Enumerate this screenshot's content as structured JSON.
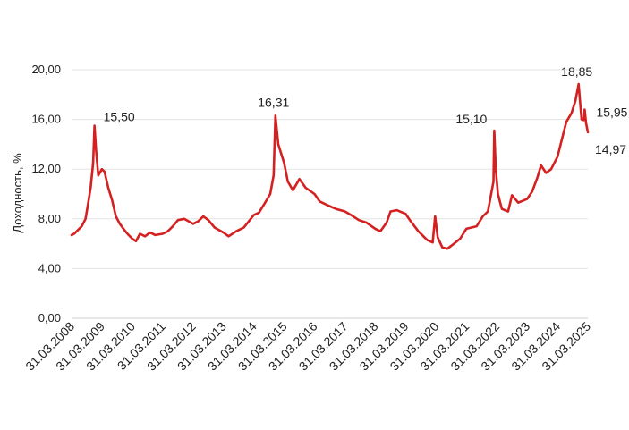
{
  "chart_data": {
    "type": "line",
    "title": "",
    "xlabel": "",
    "ylabel": "Доходность, %",
    "ylim": [
      0,
      20
    ],
    "grid": true,
    "legend": "none",
    "line_color": "#d42020",
    "y_ticks": [
      {
        "value": 0,
        "label": "0,00"
      },
      {
        "value": 4,
        "label": "4,00"
      },
      {
        "value": 8,
        "label": "8,00"
      },
      {
        "value": 12,
        "label": "12,00"
      },
      {
        "value": 16,
        "label": "16,00"
      },
      {
        "value": 20,
        "label": "20,00"
      }
    ],
    "x_ticks": [
      "31.03.2008",
      "31.03.2009",
      "31.03.2010",
      "31.03.2011",
      "31.03.2012",
      "31.03.2013",
      "31.03.2014",
      "31.03.2015",
      "31.03.2016",
      "31.03.2017",
      "31.03.2018",
      "31.03.2019",
      "31.03.2020",
      "31.03.2021",
      "31.03.2022",
      "31.03.2023",
      "31.03.2024",
      "31.03.2025"
    ],
    "annotations": [
      {
        "label": "15,50",
        "x": "2009-01-01",
        "y": 15.5
      },
      {
        "label": "16,31",
        "x": "2014-12-16",
        "y": 16.31
      },
      {
        "label": "15,10",
        "x": "2022-03-01",
        "y": 15.1
      },
      {
        "label": "18,85",
        "x": "2024-12-10",
        "y": 18.85
      },
      {
        "label": "15,95",
        "x": "2025-02-10",
        "y": 15.95
      },
      {
        "label": "14,97",
        "x": "2025-03-31",
        "y": 14.97
      }
    ],
    "series": [
      {
        "values": [
          [
            "2008-03-31",
            6.7
          ],
          [
            "2008-05-01",
            6.8
          ],
          [
            "2008-06-15",
            7.1
          ],
          [
            "2008-08-01",
            7.4
          ],
          [
            "2008-09-15",
            8.0
          ],
          [
            "2008-10-15",
            9.2
          ],
          [
            "2008-11-15",
            10.5
          ],
          [
            "2008-12-15",
            12.5
          ],
          [
            "2009-01-01",
            15.5
          ],
          [
            "2009-01-20",
            13.5
          ],
          [
            "2009-02-15",
            11.5
          ],
          [
            "2009-03-31",
            12.0
          ],
          [
            "2009-05-01",
            11.8
          ],
          [
            "2009-06-15",
            10.5
          ],
          [
            "2009-08-01",
            9.5
          ],
          [
            "2009-09-15",
            8.2
          ],
          [
            "2009-11-01",
            7.6
          ],
          [
            "2009-12-15",
            7.2
          ],
          [
            "2010-02-01",
            6.8
          ],
          [
            "2010-03-31",
            6.4
          ],
          [
            "2010-05-15",
            6.2
          ],
          [
            "2010-07-01",
            6.8
          ],
          [
            "2010-09-01",
            6.6
          ],
          [
            "2010-11-01",
            6.9
          ],
          [
            "2011-01-01",
            6.7
          ],
          [
            "2011-03-31",
            6.8
          ],
          [
            "2011-06-01",
            7.0
          ],
          [
            "2011-08-01",
            7.4
          ],
          [
            "2011-10-01",
            7.9
          ],
          [
            "2011-12-15",
            8.0
          ],
          [
            "2012-03-31",
            7.6
          ],
          [
            "2012-06-01",
            7.8
          ],
          [
            "2012-08-01",
            8.2
          ],
          [
            "2012-10-01",
            7.9
          ],
          [
            "2012-12-15",
            7.3
          ],
          [
            "2013-03-31",
            6.9
          ],
          [
            "2013-06-01",
            6.6
          ],
          [
            "2013-09-01",
            7.0
          ],
          [
            "2013-12-01",
            7.3
          ],
          [
            "2014-03-31",
            8.3
          ],
          [
            "2014-06-01",
            8.5
          ],
          [
            "2014-08-15",
            9.3
          ],
          [
            "2014-10-15",
            10.0
          ],
          [
            "2014-11-25",
            11.5
          ],
          [
            "2014-12-16",
            16.31
          ],
          [
            "2015-01-20",
            14.0
          ],
          [
            "2015-03-31",
            12.5
          ],
          [
            "2015-05-15",
            11.0
          ],
          [
            "2015-07-15",
            10.3
          ],
          [
            "2015-10-01",
            11.2
          ],
          [
            "2015-12-15",
            10.5
          ],
          [
            "2016-03-31",
            10.0
          ],
          [
            "2016-06-01",
            9.4
          ],
          [
            "2016-09-01",
            9.1
          ],
          [
            "2016-12-15",
            8.8
          ],
          [
            "2017-03-31",
            8.6
          ],
          [
            "2017-06-15",
            8.3
          ],
          [
            "2017-09-15",
            7.9
          ],
          [
            "2017-12-15",
            7.7
          ],
          [
            "2018-03-31",
            7.2
          ],
          [
            "2018-06-01",
            7.0
          ],
          [
            "2018-08-15",
            7.7
          ],
          [
            "2018-10-01",
            8.6
          ],
          [
            "2018-12-15",
            8.7
          ],
          [
            "2019-03-31",
            8.4
          ],
          [
            "2019-06-01",
            7.8
          ],
          [
            "2019-09-01",
            7.0
          ],
          [
            "2019-12-15",
            6.3
          ],
          [
            "2020-02-20",
            6.1
          ],
          [
            "2020-03-20",
            8.2
          ],
          [
            "2020-04-20",
            6.5
          ],
          [
            "2020-06-15",
            5.7
          ],
          [
            "2020-08-15",
            5.6
          ],
          [
            "2020-11-01",
            6.0
          ],
          [
            "2021-01-15",
            6.4
          ],
          [
            "2021-03-31",
            7.2
          ],
          [
            "2021-06-01",
            7.3
          ],
          [
            "2021-08-01",
            7.4
          ],
          [
            "2021-10-15",
            8.2
          ],
          [
            "2021-12-15",
            8.6
          ],
          [
            "2022-02-20",
            11.0
          ],
          [
            "2022-03-01",
            15.1
          ],
          [
            "2022-03-20",
            12.0
          ],
          [
            "2022-04-15",
            10.0
          ],
          [
            "2022-06-01",
            8.8
          ],
          [
            "2022-08-15",
            8.6
          ],
          [
            "2022-10-01",
            9.9
          ],
          [
            "2022-12-15",
            9.3
          ],
          [
            "2023-03-31",
            9.6
          ],
          [
            "2023-06-01",
            10.2
          ],
          [
            "2023-08-01",
            11.3
          ],
          [
            "2023-09-15",
            12.3
          ],
          [
            "2023-11-15",
            11.7
          ],
          [
            "2024-01-15",
            12.0
          ],
          [
            "2024-03-31",
            13.0
          ],
          [
            "2024-05-15",
            14.2
          ],
          [
            "2024-07-15",
            15.8
          ],
          [
            "2024-09-15",
            16.5
          ],
          [
            "2024-11-01",
            17.5
          ],
          [
            "2024-12-10",
            18.85
          ],
          [
            "2024-12-25",
            17.6
          ],
          [
            "2025-01-15",
            16.0
          ],
          [
            "2025-02-10",
            15.95
          ],
          [
            "2025-02-20",
            16.8
          ],
          [
            "2025-03-10",
            15.7
          ],
          [
            "2025-03-31",
            14.97
          ]
        ]
      }
    ]
  }
}
